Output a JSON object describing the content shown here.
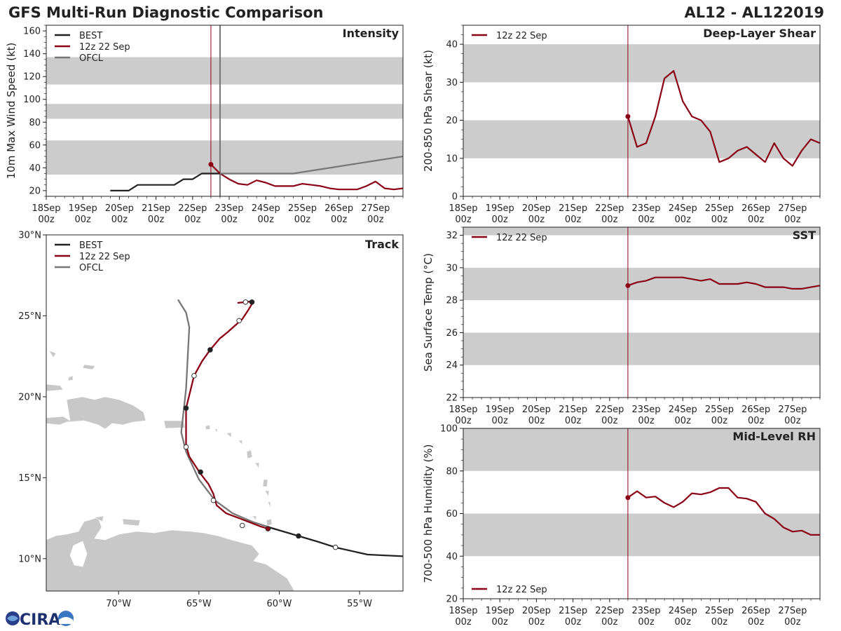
{
  "header": {
    "title": "GFS Multi-Run Diagnostic Comparison",
    "storm_id": "AL12 - AL122019"
  },
  "time_axis": {
    "labels": [
      [
        "18Sep",
        "00z"
      ],
      [
        "19Sep",
        "00z"
      ],
      [
        "20Sep",
        "00z"
      ],
      [
        "21Sep",
        "00z"
      ],
      [
        "22Sep",
        "00z"
      ],
      [
        "23Sep",
        "00z"
      ],
      [
        "24Sep",
        "00z"
      ],
      [
        "25Sep",
        "00z"
      ],
      [
        "26Sep",
        "00z"
      ],
      [
        "27Sep",
        "00z"
      ]
    ]
  },
  "colors": {
    "best": "#222222",
    "gfs": "#8b0014",
    "ofcl": "#777777",
    "band": "#cccccc",
    "land": "#c8c8c8"
  },
  "logo": {
    "text": "CIRA"
  },
  "chart_data": [
    {
      "id": "intensity",
      "type": "line",
      "title": "Intensity",
      "ylabel": "10m Max Wind Speed (kt)",
      "xlim": [
        0,
        9.75
      ],
      "ylim": [
        15,
        165
      ],
      "yticks": [
        20,
        40,
        60,
        80,
        100,
        120,
        140,
        160
      ],
      "bands": [
        [
          34,
          64
        ],
        [
          83,
          96
        ],
        [
          113,
          137
        ]
      ],
      "vline_gfs": 4.5,
      "vline_ofcl": 4.75,
      "legend": [
        "BEST",
        "12z 22 Sep",
        "OFCL"
      ],
      "series": [
        {
          "name": "BEST",
          "x": [
            1.75,
            2,
            2.25,
            2.5,
            2.75,
            3,
            3.25,
            3.5,
            3.75,
            4,
            4.25,
            4.5,
            4.75
          ],
          "y": [
            20,
            20,
            20,
            25,
            25,
            25,
            25,
            25,
            30,
            30,
            35,
            35,
            35
          ]
        },
        {
          "name": "12z 22 Sep",
          "x": [
            4.5,
            4.75,
            5,
            5.25,
            5.5,
            5.75,
            6,
            6.25,
            6.5,
            6.75,
            7,
            7.25,
            7.5,
            7.75,
            8,
            8.25,
            8.5,
            8.75,
            9,
            9.25,
            9.5,
            9.75
          ],
          "y": [
            43,
            35,
            30,
            26,
            25,
            29,
            27,
            24,
            24,
            24,
            26,
            25,
            24,
            22,
            21,
            21,
            21,
            24,
            28,
            22,
            21,
            22
          ]
        },
        {
          "name": "OFCL",
          "x": [
            4.75,
            5,
            5.75,
            6.75,
            9.75
          ],
          "y": [
            35,
            35,
            35,
            35,
            50
          ]
        }
      ]
    },
    {
      "id": "shear",
      "type": "line",
      "title": "Deep-Layer Shear",
      "ylabel": "200-850 hPa Shear (kt)",
      "xlim": [
        0,
        9.75
      ],
      "ylim": [
        0,
        45
      ],
      "yticks": [
        0,
        10,
        20,
        30,
        40
      ],
      "bands": [
        [
          10,
          20
        ],
        [
          30,
          40
        ]
      ],
      "vline_gfs": 4.5,
      "legend": [
        "12z 22 Sep"
      ],
      "series": [
        {
          "name": "12z 22 Sep",
          "x": [
            4.5,
            4.75,
            5,
            5.25,
            5.5,
            5.75,
            6,
            6.25,
            6.5,
            6.75,
            7,
            7.25,
            7.5,
            7.75,
            8,
            8.25,
            8.5,
            8.75,
            9,
            9.25,
            9.5,
            9.75
          ],
          "y": [
            21,
            13,
            14,
            21,
            31,
            33,
            25,
            21,
            20,
            17,
            9,
            10,
            12,
            13,
            11,
            9,
            14,
            10,
            8,
            12,
            15,
            14
          ]
        }
      ]
    },
    {
      "id": "sst",
      "type": "line",
      "title": "SST",
      "ylabel": "Sea Surface Temp (°C)",
      "xlim": [
        0,
        9.75
      ],
      "ylim": [
        22,
        32.5
      ],
      "yticks": [
        22,
        24,
        26,
        28,
        30,
        32
      ],
      "bands": [
        [
          24,
          26
        ],
        [
          28,
          30
        ],
        [
          32,
          32.5
        ]
      ],
      "vline_gfs": 4.5,
      "legend": [
        "12z 22 Sep"
      ],
      "series": [
        {
          "name": "12z 22 Sep",
          "x": [
            4.5,
            4.75,
            5,
            5.25,
            5.5,
            5.75,
            6,
            6.25,
            6.5,
            6.75,
            7,
            7.25,
            7.5,
            7.75,
            8,
            8.25,
            8.5,
            8.75,
            9,
            9.25,
            9.5,
            9.75
          ],
          "y": [
            28.9,
            29.1,
            29.2,
            29.4,
            29.4,
            29.4,
            29.4,
            29.3,
            29.2,
            29.3,
            29.0,
            29.0,
            29.0,
            29.1,
            29.0,
            28.8,
            28.8,
            28.8,
            28.7,
            28.7,
            28.8,
            28.9
          ]
        }
      ]
    },
    {
      "id": "rh",
      "type": "line",
      "title": "Mid-Level RH",
      "ylabel": "700-500 hPa Humidity (%)",
      "xlim": [
        0,
        9.75
      ],
      "ylim": [
        20,
        100
      ],
      "yticks": [
        20,
        40,
        60,
        80,
        100
      ],
      "bands": [
        [
          40,
          60
        ],
        [
          80,
          100
        ]
      ],
      "vline_gfs": 4.5,
      "legend": [
        "12z 22 Sep"
      ],
      "series": [
        {
          "name": "12z 22 Sep",
          "x": [
            4.5,
            4.75,
            5,
            5.25,
            5.5,
            5.75,
            6,
            6.25,
            6.5,
            6.75,
            7,
            7.25,
            7.5,
            7.75,
            8,
            8.25,
            8.5,
            8.75,
            9,
            9.25,
            9.5,
            9.75
          ],
          "y": [
            67.5,
            70.5,
            67.5,
            68,
            65,
            63,
            65.5,
            69.5,
            69,
            70,
            72,
            72,
            67.5,
            67,
            65.5,
            60,
            57.5,
            53.5,
            51.5,
            52,
            50,
            50
          ]
        }
      ]
    },
    {
      "id": "track",
      "type": "line",
      "title": "Track",
      "projection": "lon-lat",
      "xlim": [
        -74.5,
        -52.3
      ],
      "ylim": [
        8,
        30
      ],
      "xticks": [
        -70,
        -65,
        -60,
        -55
      ],
      "xtick_labels": [
        "70°W",
        "65°W",
        "60°W",
        "55°W"
      ],
      "yticks": [
        10,
        15,
        20,
        25,
        30
      ],
      "ytick_labels": [
        "10°N",
        "15°N",
        "20°N",
        "25°N",
        "30°N"
      ],
      "legend": [
        "BEST",
        "12z 22 Sep",
        "OFCL"
      ],
      "series": [
        {
          "name": "BEST",
          "lon": [
            -52.3,
            -54.5,
            -56.5,
            -57.6,
            -58.8,
            -60.0,
            -60.7
          ],
          "lat": [
            10.15,
            10.25,
            10.7,
            11.05,
            11.4,
            11.75,
            11.95
          ],
          "markers": [
            {
              "lon": -56.5,
              "lat": 10.7,
              "filled": false
            },
            {
              "lon": -58.8,
              "lat": 11.4,
              "filled": true
            }
          ]
        },
        {
          "name": "12z 22 Sep",
          "lon": [
            -60.7,
            -61.2,
            -62.5,
            -63.3,
            -63.9,
            -64.1,
            -64.4,
            -64.9,
            -65.6,
            -65.8,
            -65.8,
            -65.8,
            -65.6,
            -65.3,
            -64.8,
            -64.3,
            -63.7,
            -63.2,
            -62.3,
            -61.9,
            -61.6,
            -62.6
          ],
          "lat": [
            11.85,
            12.0,
            12.5,
            12.8,
            13.3,
            14.0,
            14.6,
            15.25,
            16.3,
            17.0,
            18.2,
            19.3,
            20.1,
            21.3,
            22.2,
            22.9,
            23.6,
            24.0,
            24.8,
            25.4,
            25.9,
            25.8
          ],
          "markers": [
            {
              "lon": -60.7,
              "lat": 11.85,
              "filled": true
            },
            {
              "lon": -64.9,
              "lat": 15.35,
              "filled": true
            },
            {
              "lon": -65.8,
              "lat": 19.3,
              "filled": true
            },
            {
              "lon": -64.3,
              "lat": 22.9,
              "filled": true
            },
            {
              "lon": -62.5,
              "lat": 24.7,
              "filled": false
            },
            {
              "lon": -62.1,
              "lat": 25.85,
              "filled": false
            },
            {
              "lon": -61.7,
              "lat": 25.85,
              "filled": true
            }
          ]
        },
        {
          "name": "OFCL",
          "lon": [
            -60.0,
            -61.6,
            -62.9,
            -64.0,
            -65.0,
            -65.8,
            -66.1,
            -65.8,
            -65.6,
            -65.8,
            -66.3
          ],
          "lat": [
            11.75,
            12.25,
            12.8,
            13.6,
            14.9,
            16.6,
            17.8,
            20.5,
            24.3,
            25.2,
            26.0
          ],
          "markers": [
            {
              "lon": -62.3,
              "lat": 12.05,
              "filled": false
            },
            {
              "lon": -64.1,
              "lat": 13.6,
              "filled": false
            },
            {
              "lon": -65.8,
              "lat": 16.9,
              "filled": false
            },
            {
              "lon": -65.3,
              "lat": 21.3,
              "filled": false
            }
          ]
        }
      ]
    }
  ]
}
